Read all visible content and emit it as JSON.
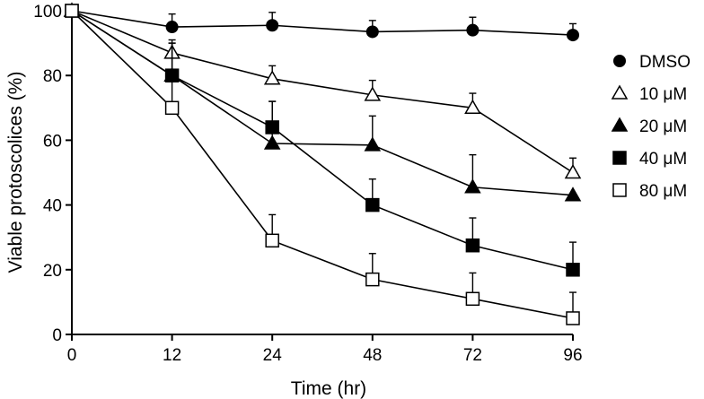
{
  "chart_data": {
    "type": "line",
    "title": "",
    "xlabel": "Time (hr)",
    "ylabel": "Viable protoscolices (%)",
    "categories": [
      "0",
      "12",
      "24",
      "48",
      "72",
      "96"
    ],
    "ylim": [
      0,
      100
    ],
    "yticks": [
      "0",
      "20",
      "40",
      "60",
      "80",
      "100"
    ],
    "legend_position": "right",
    "series": [
      {
        "name": "DMSO",
        "marker": "circle",
        "values": [
          100,
          95,
          95.5,
          93.5,
          94,
          92.5
        ],
        "errors": [
          0,
          4,
          4,
          3.5,
          4,
          3.5
        ]
      },
      {
        "name": "10 μM",
        "marker": "triangle-open",
        "values": [
          100,
          87,
          79,
          74,
          70,
          50
        ],
        "errors": [
          0,
          4,
          4,
          4.5,
          4.5,
          4.5
        ]
      },
      {
        "name": "20 μM",
        "marker": "triangle-filled",
        "values": [
          100,
          80,
          59,
          58.5,
          45.5,
          43
        ],
        "errors": [
          0,
          10,
          13,
          9,
          10,
          0
        ]
      },
      {
        "name": "40 μM",
        "marker": "square-filled",
        "values": [
          100,
          80,
          64,
          40,
          27.5,
          20
        ],
        "errors": [
          0,
          10,
          8,
          8,
          8.5,
          8.5
        ]
      },
      {
        "name": "80 μM",
        "marker": "square-open",
        "values": [
          100,
          70,
          29,
          17,
          11,
          5
        ],
        "errors": [
          0,
          9,
          8,
          8,
          8,
          8
        ]
      }
    ]
  }
}
